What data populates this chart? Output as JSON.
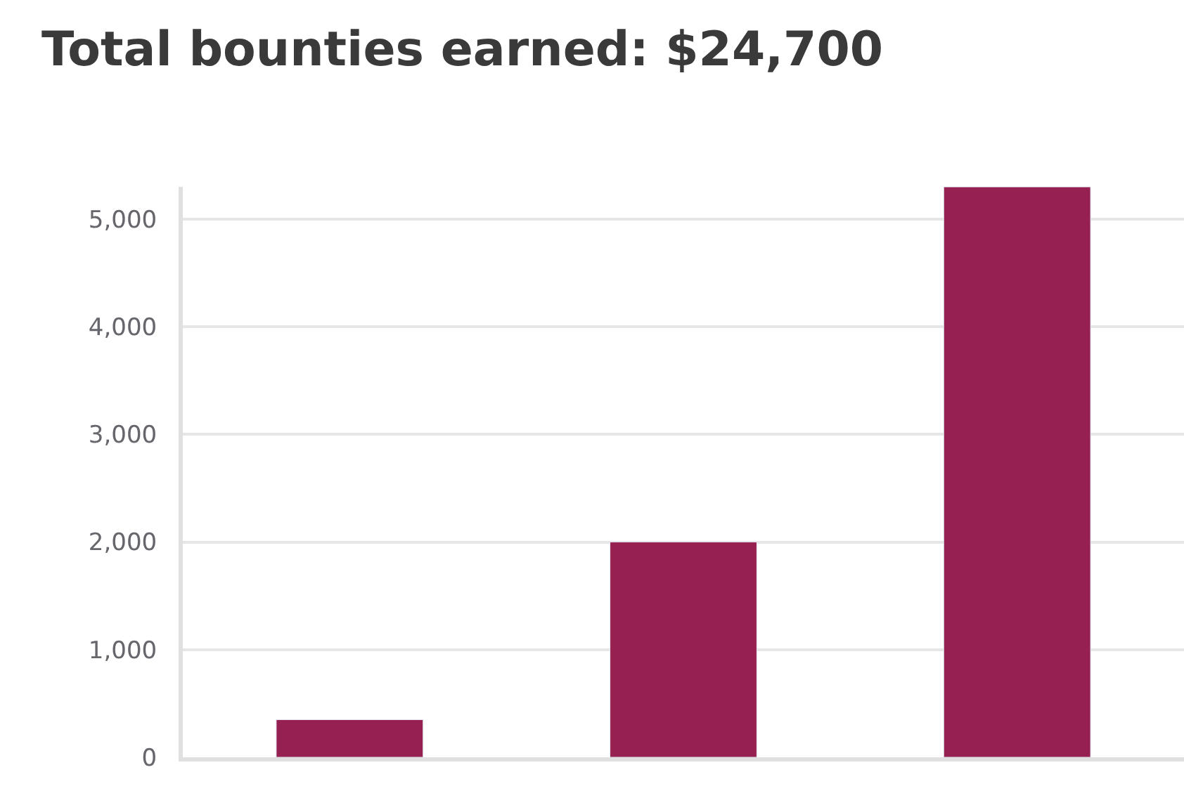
{
  "chart_data": {
    "type": "bar",
    "title": "Total bounties earned: $24,700",
    "categories": [
      null,
      null,
      null
    ],
    "series": [
      {
        "color": "#96204f",
        "values": [
          350,
          2000,
          5300
        ]
      }
    ],
    "ylim": [
      0,
      5300
    ],
    "yticks": [
      0,
      {
        "value": 1000,
        "label": "1,000"
      },
      {
        "value": 2000,
        "label": "2,000"
      },
      {
        "value": 3000,
        "label": "3,000"
      },
      {
        "value": 4000,
        "label": "4,000"
      },
      {
        "value": 5000,
        "label": "5,000"
      }
    ],
    "grid": "y"
  }
}
